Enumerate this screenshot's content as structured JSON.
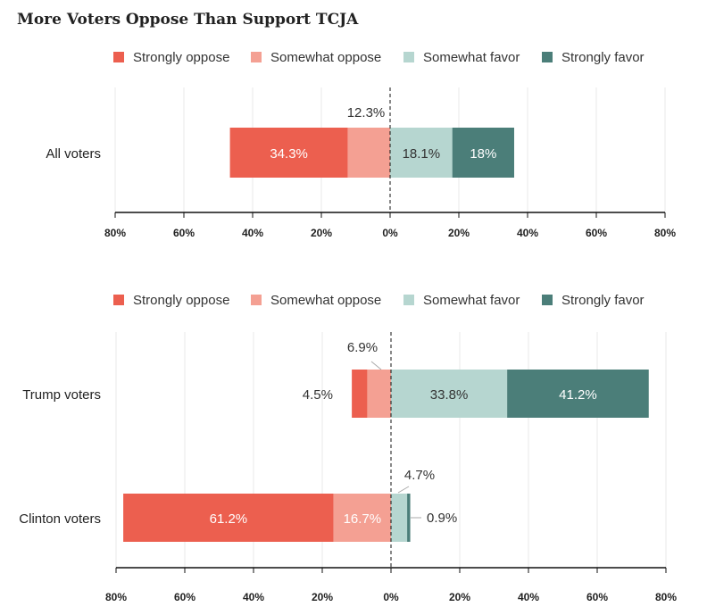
{
  "title": "More Voters Oppose Than Support TCJA",
  "colors": {
    "strongly_oppose": "#ec5f4f",
    "somewhat_oppose": "#f4a093",
    "somewhat_favor": "#b6d6d0",
    "strongly_favor": "#4b7e79"
  },
  "chart_data": [
    {
      "type": "bar",
      "orientation": "horizontal-diverging-stacked",
      "legend": [
        "Strongly oppose",
        "Somewhat oppose",
        "Somewhat favor",
        "Strongly favor"
      ],
      "legend_placement": "top",
      "categories": [
        "All voters"
      ],
      "series": [
        {
          "name": "Strongly oppose",
          "values": [
            34.3
          ]
        },
        {
          "name": "Somewhat oppose",
          "values": [
            12.3
          ]
        },
        {
          "name": "Somewhat favor",
          "values": [
            18.1
          ]
        },
        {
          "name": "Strongly favor",
          "values": [
            18
          ]
        }
      ],
      "data_labels": [
        [
          "34.3%",
          "12.3%",
          "18.1%",
          "18%"
        ]
      ],
      "xlim": [
        -80,
        80
      ],
      "xticks": [
        "80%",
        "60%",
        "40%",
        "20%",
        "0%",
        "20%",
        "40%",
        "60%",
        "80%"
      ],
      "grid": true
    },
    {
      "type": "bar",
      "orientation": "horizontal-diverging-stacked",
      "legend": [
        "Strongly oppose",
        "Somewhat oppose",
        "Somewhat favor",
        "Strongly favor"
      ],
      "legend_placement": "top",
      "categories": [
        "Trump voters",
        "Clinton voters"
      ],
      "series": [
        {
          "name": "Strongly oppose",
          "values": [
            4.5,
            61.2
          ]
        },
        {
          "name": "Somewhat oppose",
          "values": [
            6.9,
            16.7
          ]
        },
        {
          "name": "Somewhat favor",
          "values": [
            33.8,
            4.7
          ]
        },
        {
          "name": "Strongly favor",
          "values": [
            41.2,
            0.9
          ]
        }
      ],
      "data_labels": [
        [
          "4.5%",
          "6.9%",
          "33.8%",
          "41.2%"
        ],
        [
          "61.2%",
          "16.7%",
          "4.7%",
          "0.9%"
        ]
      ],
      "xlim": [
        -80,
        80
      ],
      "xticks": [
        "80%",
        "60%",
        "40%",
        "20%",
        "0%",
        "20%",
        "40%",
        "60%",
        "80%"
      ],
      "grid": true
    }
  ]
}
